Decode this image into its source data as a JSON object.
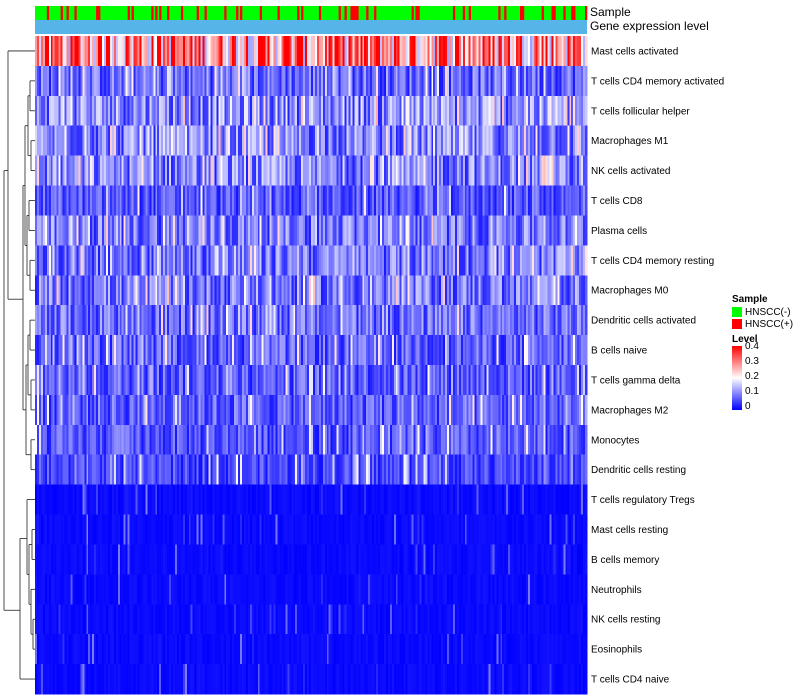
{
  "chart_data": {
    "type": "heatmap",
    "title": "",
    "annotation_labels": [
      "Sample",
      "Gene expression level"
    ],
    "rows": [
      "Mast cells activated",
      "T cells CD4 memory activated",
      "T cells follicular helper",
      "Macrophages M1",
      "NK cells activated",
      "T cells CD8",
      "Plasma cells",
      "T cells CD4 memory resting",
      "Macrophages M0",
      "Dendritic cells activated",
      "B cells naive",
      "T cells gamma delta",
      "Macrophages M2",
      "Monocytes",
      "Dendritic cells resting",
      "T cells regulatory  Tregs",
      "Mast cells resting",
      "B cells memory",
      "Neutrophils",
      "NK cells resting",
      "Eosinophils",
      "T cells CD4 naive"
    ],
    "row_mean_levels": [
      0.3,
      0.09,
      0.12,
      0.11,
      0.11,
      0.07,
      0.1,
      0.1,
      0.1,
      0.09,
      0.08,
      0.08,
      0.08,
      0.07,
      0.06,
      0.05,
      0.03,
      0.03,
      0.03,
      0.02,
      0.02,
      0.03
    ],
    "n_samples": 280,
    "sample_groups": [
      "HNSCC(-)",
      "HNSCC(+)"
    ],
    "positive_fraction": 0.22,
    "color_scale": {
      "low_color": "#0000ff",
      "mid_color": "#ffffff",
      "high_color": "#ff0000",
      "min": 0,
      "max": 0.4
    },
    "legend": {
      "sample_title": "Sample",
      "sample_entries": [
        {
          "label": "HNSCC(-)",
          "color": "#00ff00"
        },
        {
          "label": "HNSCC(+)",
          "color": "#ff0000"
        }
      ],
      "level_title": "Level",
      "level_ticks": [
        "0.4",
        "0.3",
        "0.2",
        "0.1",
        "0"
      ],
      "placement": "right"
    },
    "expression_bar_color": "#56b4e9",
    "dendrogram": "row clustering tree on left"
  }
}
